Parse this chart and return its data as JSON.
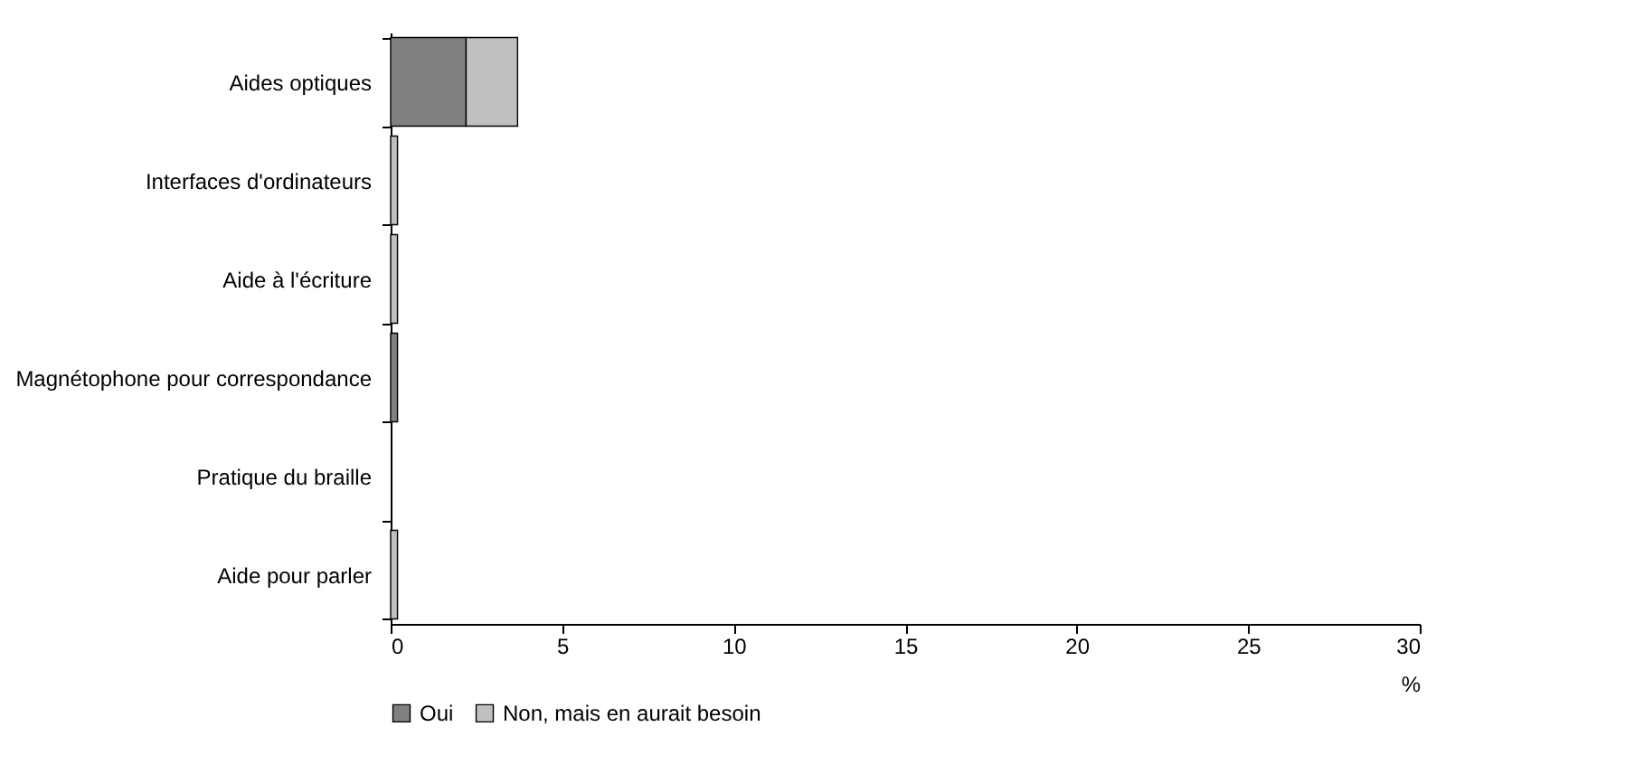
{
  "chart_data": {
    "type": "bar",
    "orientation": "horizontal",
    "stacked": true,
    "categories": [
      "Aides optiques",
      "Interfaces d'ordinateurs",
      "Aide à l'écriture",
      "Magnétophone pour correspondance",
      "Pratique du braille",
      "Aide pour parler"
    ],
    "series": [
      {
        "name": "Oui",
        "color": "#808080",
        "values": [
          2.2,
          0,
          0,
          0.2,
          0,
          0
        ]
      },
      {
        "name": "Non, mais en aurait besoin",
        "color": "#c0c0c0",
        "values": [
          1.5,
          0.2,
          0.2,
          0,
          0,
          0.2
        ]
      }
    ],
    "xlabel": "%",
    "xlim": [
      0,
      30
    ],
    "xticks": [
      0,
      5,
      10,
      15,
      20,
      25,
      30
    ],
    "grid": false,
    "legend": "bottom"
  }
}
